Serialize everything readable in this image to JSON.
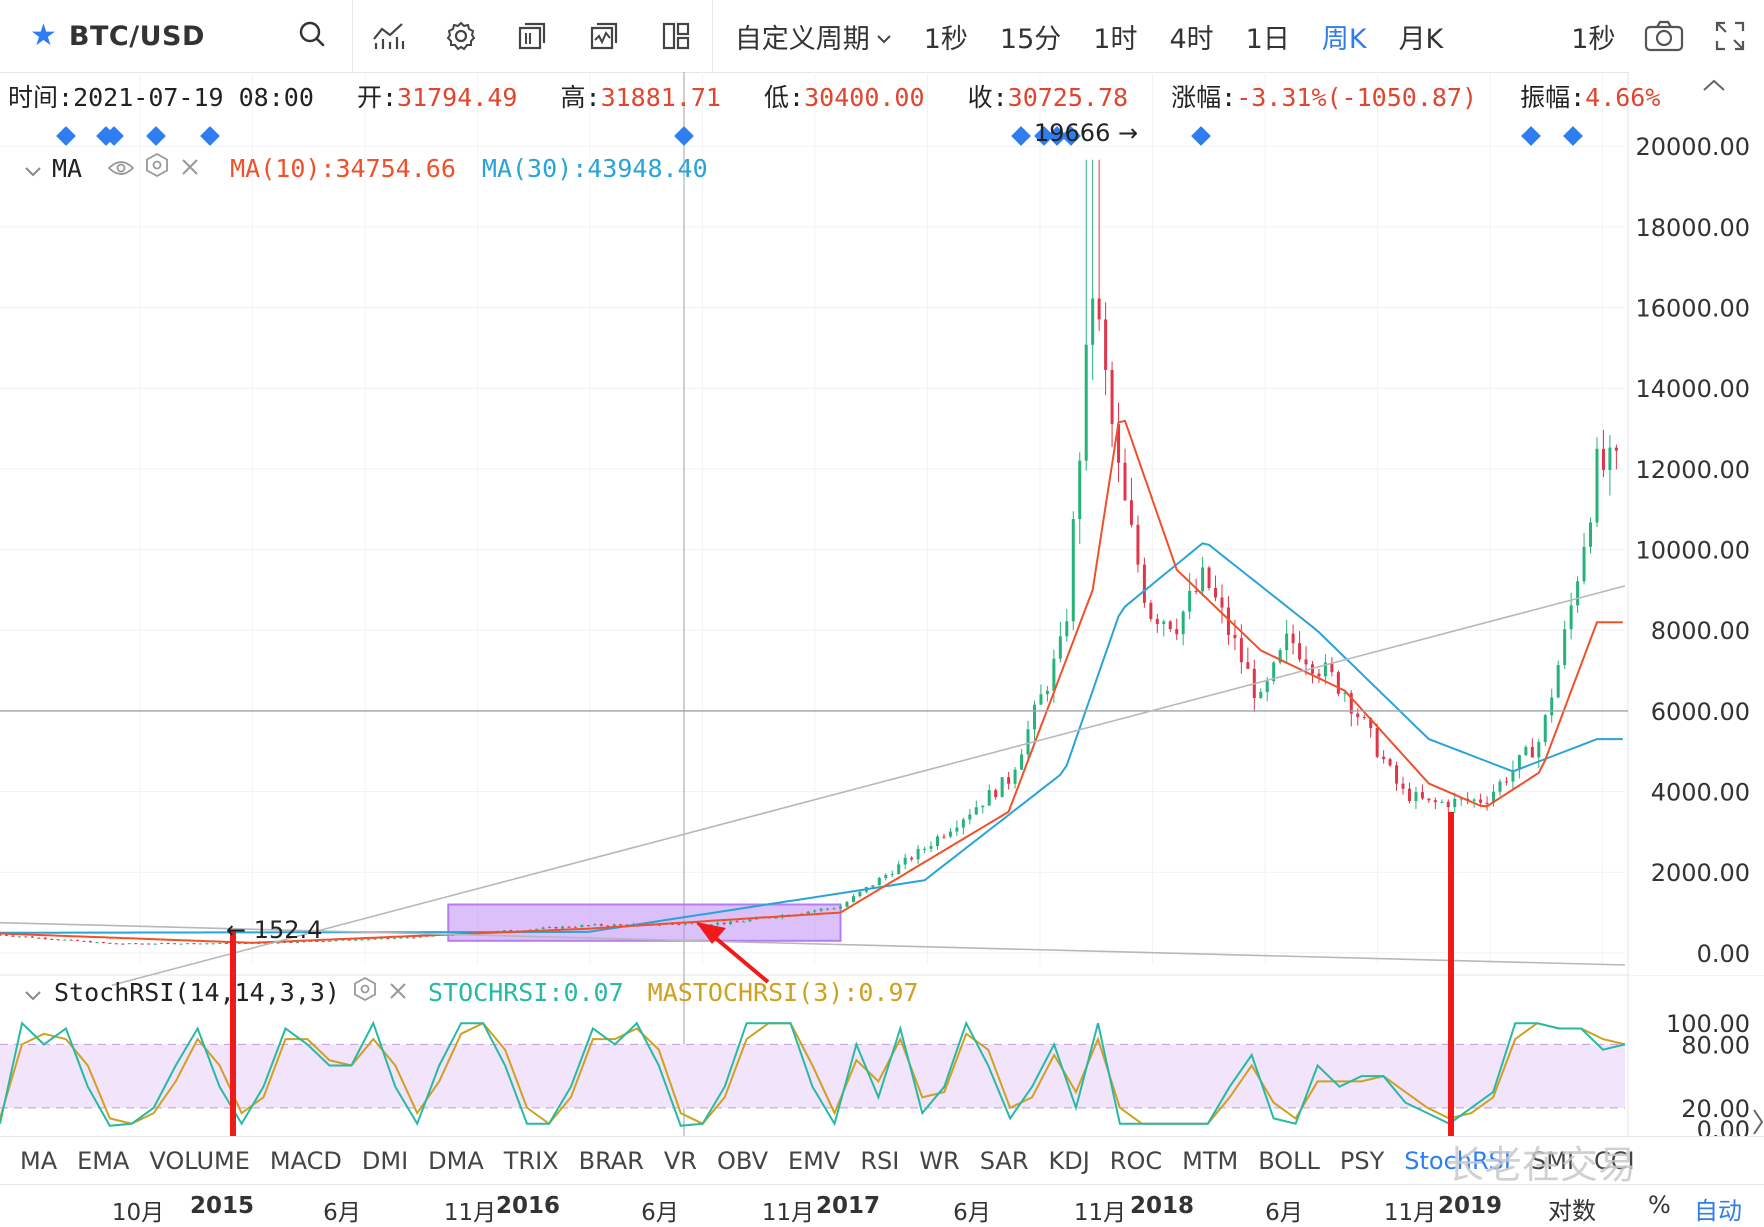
{
  "toolbar": {
    "symbol": "BTC/USD",
    "icons": [
      "star-icon",
      "search-icon",
      "indicator-icon",
      "settings-icon",
      "template-icon",
      "compare-icon",
      "layout-icon",
      "camera-icon",
      "fullscreen-icon"
    ],
    "custom_period": "自定义周期",
    "periods": [
      "1秒",
      "15分",
      "1时",
      "4时",
      "1日",
      "周K",
      "月K"
    ],
    "active_period": "周K",
    "right_label": "1秒"
  },
  "info": {
    "time_label": "时间:",
    "time": "2021-07-19 08:00",
    "open_label": "开:",
    "open": "31794.49",
    "high_label": "高:",
    "high": "31881.71",
    "low_label": "低:",
    "low": "30400.00",
    "close_label": "收:",
    "close": "30725.78",
    "change_label": "涨幅:",
    "change": "-3.31%(-1050.87)",
    "amp_label": "振幅:",
    "amp": "4.66%"
  },
  "ma_legend": {
    "name": "MA",
    "ma10": "MA(10):34754.66",
    "ma30": "MA(30):43948.40"
  },
  "stoch_legend": {
    "name": "StochRSI(14,14,3,3)",
    "stochrsi": "STOCHRSI:0.07",
    "mastochrsi": "MASTOCHRSI(3):0.97"
  },
  "indicators": [
    "MA",
    "EMA",
    "VOLUME",
    "MACD",
    "DMI",
    "DMA",
    "TRIX",
    "BRAR",
    "VR",
    "OBV",
    "EMV",
    "RSI",
    "WR",
    "SAR",
    "KDJ",
    "ROC",
    "MTM",
    "BOLL",
    "PSY",
    "StochRSI",
    "SMI",
    "CCI"
  ],
  "active_indicator": "StochRSI",
  "date_axis": {
    "ticks": [
      {
        "label": "10月",
        "year": false
      },
      {
        "label": "2015",
        "year": true
      },
      {
        "label": "6月",
        "year": false
      },
      {
        "label": "11月",
        "year": false
      },
      {
        "label": "2016",
        "year": true
      },
      {
        "label": "6月",
        "year": false
      },
      {
        "label": "11月",
        "year": false
      },
      {
        "label": "2017",
        "year": true
      },
      {
        "label": "6月",
        "year": false
      },
      {
        "label": "11月",
        "year": false
      },
      {
        "label": "2018",
        "year": true
      },
      {
        "label": "6月",
        "year": false
      },
      {
        "label": "11月",
        "year": false
      },
      {
        "label": "2019",
        "year": true
      }
    ],
    "right": [
      "对数",
      "%",
      "自动"
    ]
  },
  "annotations": {
    "peak_label": "19666 →",
    "low_label": "← 152.4"
  },
  "watermark": "长老在交易",
  "colors": {
    "accent": "#2f7ef0",
    "up": "#26b37a",
    "down": "#e0354a",
    "ma10": "#f0502a",
    "ma30": "#2aa3d6",
    "stoch": "#26b9a4",
    "mastoch": "#d0a020",
    "marker": "#f01a1a",
    "box": "#b77cf2"
  },
  "chart_data": [
    {
      "type": "candlestick",
      "title": "BTC/USD 周K",
      "price_axis": [
        0,
        2000,
        4000,
        6000,
        8000,
        10000,
        12000,
        14000,
        16000,
        18000,
        20000
      ],
      "price_axis_labels": [
        "0.00",
        "2000.00",
        "4000.00",
        "6000.00",
        "8000.00",
        "10000.00",
        "12000.00",
        "14000.00",
        "16000.00",
        "18000.00",
        "20000.00"
      ],
      "ylim": [
        -300,
        20700
      ],
      "x_range": [
        "2014-09",
        "2019-07"
      ],
      "close_keypoints": [
        {
          "t": "2014-09",
          "v": 450
        },
        {
          "t": "2015-01",
          "v": 230
        },
        {
          "t": "2015-06",
          "v": 240
        },
        {
          "t": "2015-11",
          "v": 360
        },
        {
          "t": "2016-06",
          "v": 680
        },
        {
          "t": "2016-11",
          "v": 740
        },
        {
          "t": "2017-03",
          "v": 1150
        },
        {
          "t": "2017-06",
          "v": 2600
        },
        {
          "t": "2017-09",
          "v": 4300
        },
        {
          "t": "2017-11",
          "v": 7800
        },
        {
          "t": "2017-12",
          "v": 16500
        },
        {
          "t": "2018-01",
          "v": 11500
        },
        {
          "t": "2018-02",
          "v": 8500
        },
        {
          "t": "2018-03",
          "v": 8200
        },
        {
          "t": "2018-04",
          "v": 9300
        },
        {
          "t": "2018-06",
          "v": 6200
        },
        {
          "t": "2018-07",
          "v": 7800
        },
        {
          "t": "2018-09",
          "v": 6500
        },
        {
          "t": "2018-11",
          "v": 4000
        },
        {
          "t": "2018-12",
          "v": 3700
        },
        {
          "t": "2019-02",
          "v": 3800
        },
        {
          "t": "2019-04",
          "v": 5300
        },
        {
          "t": "2019-05",
          "v": 8300
        },
        {
          "t": "2019-06",
          "v": 12000
        }
      ],
      "ma10_keypoints": [
        {
          "t": "2014-09",
          "v": 480
        },
        {
          "t": "2015-06",
          "v": 250
        },
        {
          "t": "2016-06",
          "v": 600
        },
        {
          "t": "2017-03",
          "v": 1000
        },
        {
          "t": "2017-09",
          "v": 3500
        },
        {
          "t": "2017-12",
          "v": 9000
        },
        {
          "t": "2018-01",
          "v": 13500
        },
        {
          "t": "2018-03",
          "v": 9500
        },
        {
          "t": "2018-06",
          "v": 7500
        },
        {
          "t": "2018-09",
          "v": 6500
        },
        {
          "t": "2018-12",
          "v": 4200
        },
        {
          "t": "2019-02",
          "v": 3600
        },
        {
          "t": "2019-04",
          "v": 4500
        },
        {
          "t": "2019-06",
          "v": 8200
        }
      ],
      "ma30_keypoints": [
        {
          "t": "2014-09",
          "v": 500
        },
        {
          "t": "2016-06",
          "v": 520
        },
        {
          "t": "2017-06",
          "v": 1800
        },
        {
          "t": "2017-11",
          "v": 4500
        },
        {
          "t": "2018-01",
          "v": 8500
        },
        {
          "t": "2018-04",
          "v": 10200
        },
        {
          "t": "2018-08",
          "v": 8000
        },
        {
          "t": "2018-12",
          "v": 5300
        },
        {
          "t": "2019-03",
          "v": 4500
        },
        {
          "t": "2019-06",
          "v": 5300
        }
      ],
      "peak": 19666,
      "low": 152.4,
      "horizontal_line": 6000,
      "trendline_up": [
        {
          "t": "2015-01",
          "v": -800
        },
        {
          "t": "2019-07",
          "v": 9100
        }
      ],
      "trendline_down": [
        {
          "t": "2014-09",
          "v": 750
        },
        {
          "t": "2019-07",
          "v": -300
        }
      ],
      "highlight_box": {
        "from": "2016-01",
        "to": "2017-03",
        "v_low": 300,
        "v_high": 1200
      }
    },
    {
      "type": "line",
      "title": "StochRSI(14,14,3,3)",
      "ylim": [
        0,
        100
      ],
      "axis_labels": [
        "100.00",
        "80.00",
        "20.00",
        "0.00"
      ],
      "bands": [
        20,
        80
      ],
      "series": [
        {
          "name": "STOCHRSI",
          "values": [
            5,
            100,
            80,
            95,
            40,
            3,
            5,
            20,
            60,
            95,
            40,
            5,
            40,
            95,
            80,
            60,
            60,
            100,
            40,
            5,
            60,
            100,
            100,
            60,
            5,
            5,
            40,
            95,
            80,
            100,
            60,
            3,
            5,
            40,
            100,
            100,
            100,
            40,
            5,
            80,
            30,
            95,
            15,
            40,
            100,
            60,
            10,
            40,
            80,
            20,
            100,
            5,
            5,
            5,
            5,
            5,
            40,
            70,
            10,
            5,
            60,
            40,
            50,
            50,
            25,
            15,
            5,
            20,
            35,
            100,
            100,
            95,
            95,
            75,
            80
          ]
        },
        {
          "name": "MASTOCHRSI",
          "values": [
            10,
            80,
            90,
            85,
            60,
            10,
            5,
            15,
            45,
            85,
            60,
            15,
            30,
            85,
            85,
            65,
            60,
            85,
            60,
            15,
            45,
            90,
            100,
            75,
            20,
            5,
            30,
            85,
            85,
            95,
            75,
            15,
            5,
            30,
            85,
            100,
            100,
            60,
            15,
            65,
            45,
            85,
            30,
            35,
            90,
            75,
            20,
            30,
            70,
            35,
            85,
            20,
            5,
            5,
            5,
            5,
            30,
            60,
            25,
            10,
            45,
            45,
            45,
            50,
            35,
            20,
            10,
            15,
            30,
            85,
            100,
            95,
            95,
            85,
            80
          ]
        }
      ]
    }
  ]
}
